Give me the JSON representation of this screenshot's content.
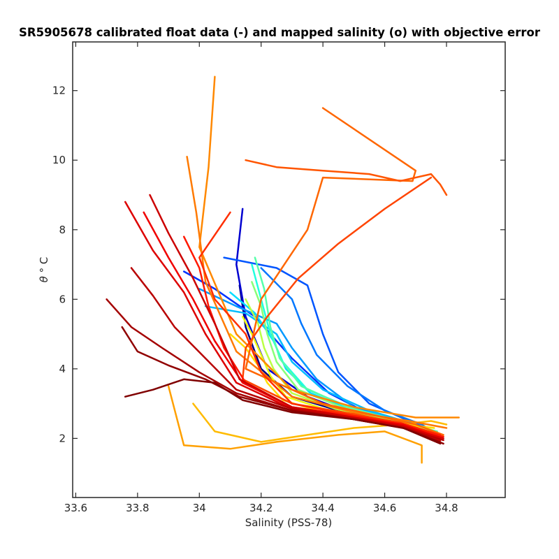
{
  "chart_data": {
    "type": "line",
    "title": "SR5905678 calibrated float data (-) and mapped salinity (o) with objective error",
    "xlabel": "Salinity (PSS-78)",
    "ylabel_symbol": "θ",
    "ylabel_unit": "° C",
    "xlim": [
      33.59,
      34.99
    ],
    "ylim": [
      0.3,
      13.4
    ],
    "xticks": [
      33.6,
      33.8,
      34,
      34.2,
      34.4,
      34.6,
      34.8
    ],
    "xtick_labels": [
      "33.6",
      "33.8",
      "34",
      "34.2",
      "34.4",
      "34.6",
      "34.8"
    ],
    "yticks": [
      2,
      4,
      6,
      8,
      10,
      12
    ],
    "ytick_labels": [
      "2",
      "4",
      "6",
      "8",
      "10",
      "12"
    ],
    "grid": false,
    "colormap": "jet (profile index)",
    "series": [
      {
        "color": "#000080",
        "x": [
          34.13,
          34.15,
          34.2,
          34.3,
          34.45,
          34.6,
          34.72,
          34.78
        ],
        "y": [
          6.4,
          5.2,
          4.0,
          3.2,
          2.8,
          2.5,
          2.3,
          2.0
        ]
      },
      {
        "color": "#0000d0",
        "x": [
          34.14,
          34.12,
          34.15,
          34.22,
          34.35,
          34.5,
          34.65,
          34.76
        ],
        "y": [
          8.6,
          7.0,
          5.5,
          4.0,
          3.2,
          2.7,
          2.4,
          2.1
        ]
      },
      {
        "color": "#0033ff",
        "x": [
          33.95,
          34.05,
          34.18,
          34.3,
          34.42,
          34.55,
          34.7,
          34.77
        ],
        "y": [
          6.8,
          6.3,
          5.5,
          4.3,
          3.3,
          2.7,
          2.3,
          2.0
        ]
      },
      {
        "color": "#0055ff",
        "x": [
          34.08,
          34.25,
          34.35,
          34.4,
          34.45,
          34.55,
          34.68,
          34.78
        ],
        "y": [
          7.2,
          6.9,
          6.4,
          5.0,
          3.9,
          3.0,
          2.5,
          2.1
        ]
      },
      {
        "color": "#0077ff",
        "x": [
          34.2,
          34.3,
          34.33,
          34.38,
          34.48,
          34.6,
          34.72,
          34.79
        ],
        "y": [
          6.9,
          6.0,
          5.3,
          4.4,
          3.5,
          2.8,
          2.4,
          2.0
        ]
      },
      {
        "color": "#0099ff",
        "x": [
          34.0,
          34.12,
          34.25,
          34.3,
          34.38,
          34.5,
          34.65,
          34.78
        ],
        "y": [
          6.3,
          5.8,
          5.3,
          4.6,
          3.7,
          2.9,
          2.5,
          2.1
        ]
      },
      {
        "color": "#00bbff",
        "x": [
          34.02,
          34.15,
          34.25,
          34.3,
          34.4,
          34.55,
          34.7,
          34.78
        ],
        "y": [
          5.8,
          5.6,
          5.0,
          4.2,
          3.4,
          2.8,
          2.4,
          2.1
        ]
      },
      {
        "color": "#00ddff",
        "x": [
          34.1,
          34.18,
          34.24,
          34.28,
          34.36,
          34.5,
          34.66,
          34.77
        ],
        "y": [
          6.2,
          5.6,
          4.8,
          4.0,
          3.3,
          2.8,
          2.45,
          2.15
        ]
      },
      {
        "color": "#22ffdd",
        "x": [
          34.17,
          34.2,
          34.23,
          34.27,
          34.35,
          34.5,
          34.65,
          34.76
        ],
        "y": [
          7.0,
          6.0,
          5.0,
          4.2,
          3.4,
          2.85,
          2.5,
          2.2
        ]
      },
      {
        "color": "#55ffaa",
        "x": [
          34.18,
          34.21,
          34.23,
          34.26,
          34.33,
          34.48,
          34.64,
          34.77
        ],
        "y": [
          7.2,
          6.3,
          5.2,
          4.3,
          3.5,
          2.9,
          2.5,
          2.2
        ]
      },
      {
        "color": "#88ff77",
        "x": [
          34.17,
          34.2,
          34.22,
          34.25,
          34.32,
          34.46,
          34.62,
          34.76
        ],
        "y": [
          6.5,
          5.8,
          5.0,
          4.2,
          3.4,
          2.9,
          2.55,
          2.2
        ]
      },
      {
        "color": "#bbff44",
        "x": [
          34.15,
          34.19,
          34.21,
          34.24,
          34.3,
          34.44,
          34.6,
          34.75
        ],
        "y": [
          6.0,
          5.3,
          4.6,
          4.0,
          3.3,
          2.85,
          2.55,
          2.25
        ]
      },
      {
        "color": "#eeff11",
        "x": [
          34.14,
          34.17,
          34.2,
          34.23,
          34.28,
          34.42,
          34.58,
          34.74
        ],
        "y": [
          5.5,
          5.0,
          4.4,
          3.8,
          3.2,
          2.8,
          2.55,
          2.3
        ]
      },
      {
        "color": "#ffdd00",
        "x": [
          34.1,
          34.15,
          34.19,
          34.22,
          34.27,
          34.4,
          34.58,
          34.76
        ],
        "y": [
          5.0,
          4.6,
          4.1,
          3.6,
          3.1,
          2.75,
          2.5,
          2.3
        ]
      },
      {
        "color": "#ffbb00",
        "x": [
          33.98,
          34.05,
          34.2,
          34.35,
          34.5,
          34.65,
          34.75,
          34.8
        ],
        "y": [
          3.0,
          2.2,
          1.9,
          2.1,
          2.3,
          2.4,
          2.5,
          2.4
        ]
      },
      {
        "color": "#ffa000",
        "x": [
          33.9,
          33.95,
          34.1,
          34.25,
          34.45,
          34.6,
          34.72,
          34.72
        ],
        "y": [
          3.5,
          1.8,
          1.7,
          1.9,
          2.1,
          2.2,
          1.8,
          1.3
        ]
      },
      {
        "color": "#ff8800",
        "x": [
          34.05,
          34.03,
          34.0,
          34.12,
          34.3,
          34.5,
          34.7,
          34.84
        ],
        "y": [
          12.4,
          9.8,
          7.5,
          5.0,
          3.4,
          2.9,
          2.6,
          2.6
        ]
      },
      {
        "color": "#ff7a00",
        "x": [
          33.96,
          33.99,
          34.02,
          34.12,
          34.3,
          34.5,
          34.68,
          34.8
        ],
        "y": [
          10.1,
          8.5,
          6.5,
          4.5,
          3.2,
          2.75,
          2.5,
          2.3
        ]
      },
      {
        "color": "#ff6600",
        "x": [
          34.4,
          34.7,
          34.69,
          34.4,
          34.35,
          34.2,
          34.15,
          34.4,
          34.55,
          34.7,
          34.79
        ],
        "y": [
          11.5,
          9.7,
          9.4,
          9.5,
          8.0,
          6.0,
          4.0,
          3.0,
          2.7,
          2.4,
          2.1
        ]
      },
      {
        "color": "#ff5500",
        "x": [
          34.15,
          34.25,
          34.4,
          34.55,
          34.65,
          34.75,
          34.78,
          34.8
        ],
        "y": [
          10.0,
          9.8,
          9.7,
          9.6,
          9.4,
          9.6,
          9.3,
          9.0
        ]
      },
      {
        "color": "#ff4400",
        "x": [
          34.75,
          34.6,
          34.45,
          34.32,
          34.22,
          34.15,
          34.14,
          34.3,
          34.5,
          34.65,
          34.78
        ],
        "y": [
          9.5,
          8.6,
          7.6,
          6.6,
          5.5,
          4.6,
          3.7,
          3.0,
          2.7,
          2.45,
          2.1
        ]
      },
      {
        "color": "#ff2e00",
        "x": [
          34.1,
          34.0,
          34.05,
          34.15,
          34.2,
          34.3,
          34.5,
          34.65,
          34.78
        ],
        "y": [
          8.5,
          7.2,
          6.0,
          5.0,
          3.9,
          3.0,
          2.65,
          2.45,
          2.1
        ]
      },
      {
        "color": "#ff1800",
        "x": [
          33.95,
          34.0,
          34.03,
          34.08,
          34.15,
          34.3,
          34.5,
          34.65,
          34.79
        ],
        "y": [
          7.8,
          6.9,
          5.8,
          4.6,
          3.6,
          2.9,
          2.65,
          2.4,
          2.05
        ]
      },
      {
        "color": "#f00000",
        "x": [
          33.82,
          33.9,
          33.98,
          34.05,
          34.14,
          34.3,
          34.5,
          34.66,
          34.78
        ],
        "y": [
          8.5,
          7.2,
          6.0,
          4.8,
          3.6,
          2.9,
          2.6,
          2.4,
          2.0
        ]
      },
      {
        "color": "#dd0000",
        "x": [
          33.76,
          33.85,
          33.95,
          34.02,
          34.12,
          34.3,
          34.5,
          34.66,
          34.79
        ],
        "y": [
          8.8,
          7.4,
          6.2,
          5.0,
          3.6,
          2.85,
          2.6,
          2.35,
          2.0
        ]
      },
      {
        "color": "#cc0000",
        "x": [
          33.84,
          33.9,
          33.98,
          34.05,
          34.13,
          34.3,
          34.5,
          34.66,
          34.78
        ],
        "y": [
          9.0,
          7.9,
          6.6,
          5.3,
          3.7,
          2.9,
          2.6,
          2.35,
          1.95
        ]
      },
      {
        "color": "#b80000",
        "x": [
          33.78,
          33.85,
          33.92,
          34.02,
          34.12,
          34.3,
          34.5,
          34.66,
          34.79
        ],
        "y": [
          6.9,
          6.1,
          5.2,
          4.3,
          3.4,
          2.85,
          2.55,
          2.3,
          1.95
        ]
      },
      {
        "color": "#a40000",
        "x": [
          33.7,
          33.78,
          33.88,
          34.0,
          34.12,
          34.3,
          34.5,
          34.66,
          34.78
        ],
        "y": [
          6.0,
          5.2,
          4.6,
          3.9,
          3.3,
          2.8,
          2.55,
          2.3,
          1.9
        ]
      },
      {
        "color": "#900000",
        "x": [
          33.75,
          33.8,
          33.9,
          34.02,
          34.13,
          34.3,
          34.5,
          34.66,
          34.79
        ],
        "y": [
          5.2,
          4.5,
          4.1,
          3.7,
          3.2,
          2.8,
          2.55,
          2.3,
          1.85
        ]
      },
      {
        "color": "#800000",
        "x": [
          33.76,
          33.85,
          33.95,
          34.05,
          34.14,
          34.3,
          34.5,
          34.66,
          34.78
        ],
        "y": [
          3.2,
          3.4,
          3.7,
          3.6,
          3.1,
          2.75,
          2.55,
          2.3,
          1.85
        ]
      }
    ]
  }
}
